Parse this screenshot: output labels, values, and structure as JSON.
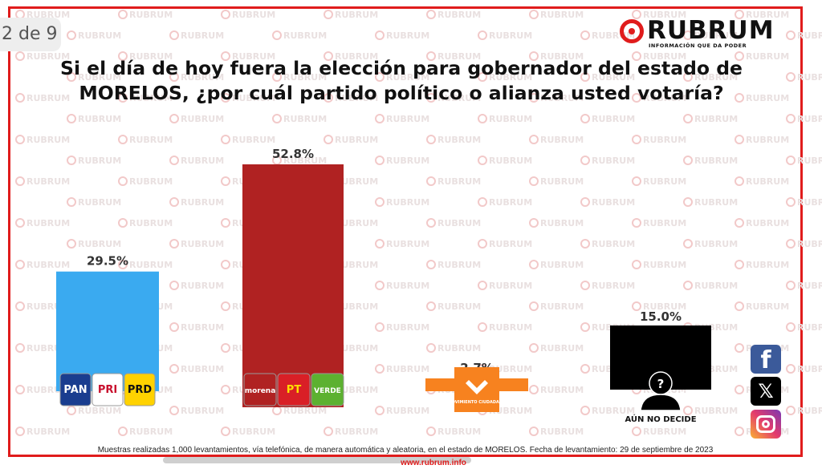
{
  "page_indicator": "2 de 9",
  "logo": {
    "name": "RUBRUM",
    "tagline": "INFORMACIÓN QUE DA PODER"
  },
  "watermark_text": "RUBRUM",
  "footnote": "Muestras realizadas 1,000 levantamientos, vía telefónica, de manera automática y aleatoria, en el estado de MORELOS. Fecha de levantamiento: 29 de septiembre de 2023",
  "website": "www.rubrum.info",
  "social_icons": [
    "facebook-icon",
    "x-icon",
    "instagram-icon"
  ],
  "chart_data": {
    "type": "bar",
    "title": "Si el día de hoy fuera la elección para gobernador del estado de MORELOS, ¿por cuál  partido político o alianza usted votaría?",
    "xlabel": "",
    "ylabel": "",
    "ylim": [
      0,
      60
    ],
    "grid": false,
    "legend": "none",
    "categories": [
      "PAN-PRI-PRD",
      "Morena-PT-Verde",
      "Movimiento Ciudadano",
      "Aún no decide"
    ],
    "values": [
      29.5,
      52.8,
      2.7,
      15.0
    ],
    "value_labels": [
      "29.5%",
      "52.8%",
      "2.7%",
      "15.0%"
    ],
    "colors": [
      "#3aaaf0",
      "#b02222",
      "#f7821f",
      "#000000"
    ],
    "party_logos": [
      [
        {
          "text": "PAN",
          "bg": "#1a3d8f",
          "fg": "#ffffff"
        },
        {
          "text": "PRI",
          "bg": "#ffffff",
          "fg": "#c8102e"
        },
        {
          "text": "PRD",
          "bg": "#ffd200",
          "fg": "#111111"
        }
      ],
      [
        {
          "text": "morena",
          "bg": "#b02222",
          "fg": "#ffffff"
        },
        {
          "text": "PT",
          "bg": "#d91f26",
          "fg": "#ffdd00"
        },
        {
          "text": "VERDE",
          "bg": "#5cb130",
          "fg": "#ffffff"
        }
      ],
      [
        {
          "text": "MOVIMIENTO CIUDADANO",
          "bg": "#f7821f",
          "fg": "#ffffff"
        }
      ],
      []
    ],
    "undecided_label": "AÚN NO DECIDE"
  }
}
